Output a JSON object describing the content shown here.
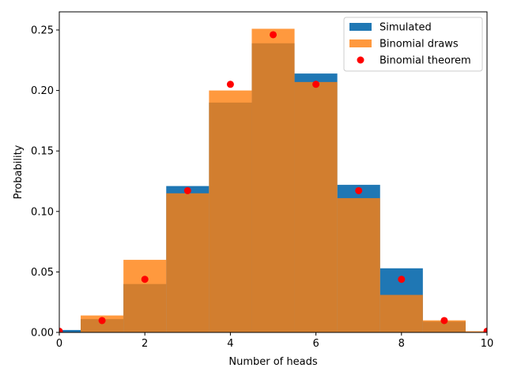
{
  "chart_data": {
    "type": "bar",
    "xlabel": "Number of heads",
    "ylabel": "Probability",
    "xlim": [
      0,
      10
    ],
    "ylim": [
      0,
      0.265
    ],
    "x_ticks": [
      0,
      2,
      4,
      6,
      8,
      10
    ],
    "x_tick_labels": [
      "0",
      "2",
      "4",
      "6",
      "8",
      "10"
    ],
    "y_ticks": [
      0.0,
      0.05,
      0.1,
      0.15,
      0.2,
      0.25
    ],
    "y_tick_labels": [
      "0.00",
      "0.05",
      "0.10",
      "0.15",
      "0.20",
      "0.25"
    ],
    "grid": false,
    "legend_position": "top-right",
    "x": [
      0,
      1,
      2,
      3,
      4,
      5,
      6,
      7,
      8,
      9,
      10
    ],
    "bar_width": 1,
    "series": [
      {
        "name": "Simulated",
        "kind": "bar",
        "color": "#1f77b4",
        "values": [
          0.002,
          0.011,
          0.04,
          0.121,
          0.19,
          0.239,
          0.214,
          0.122,
          0.053,
          0.009,
          0.0
        ]
      },
      {
        "name": "Binomial draws",
        "kind": "bar",
        "color": "#ff7f0e",
        "alpha": 0.8,
        "values": [
          0.0,
          0.014,
          0.06,
          0.115,
          0.2,
          0.251,
          0.207,
          0.111,
          0.031,
          0.01,
          0.001
        ]
      },
      {
        "name": "Binomial theorem",
        "kind": "scatter",
        "color": "#ff0000",
        "values": [
          0.001,
          0.0098,
          0.0439,
          0.1172,
          0.2051,
          0.2461,
          0.2051,
          0.1172,
          0.0439,
          0.0098,
          0.001
        ]
      }
    ]
  }
}
